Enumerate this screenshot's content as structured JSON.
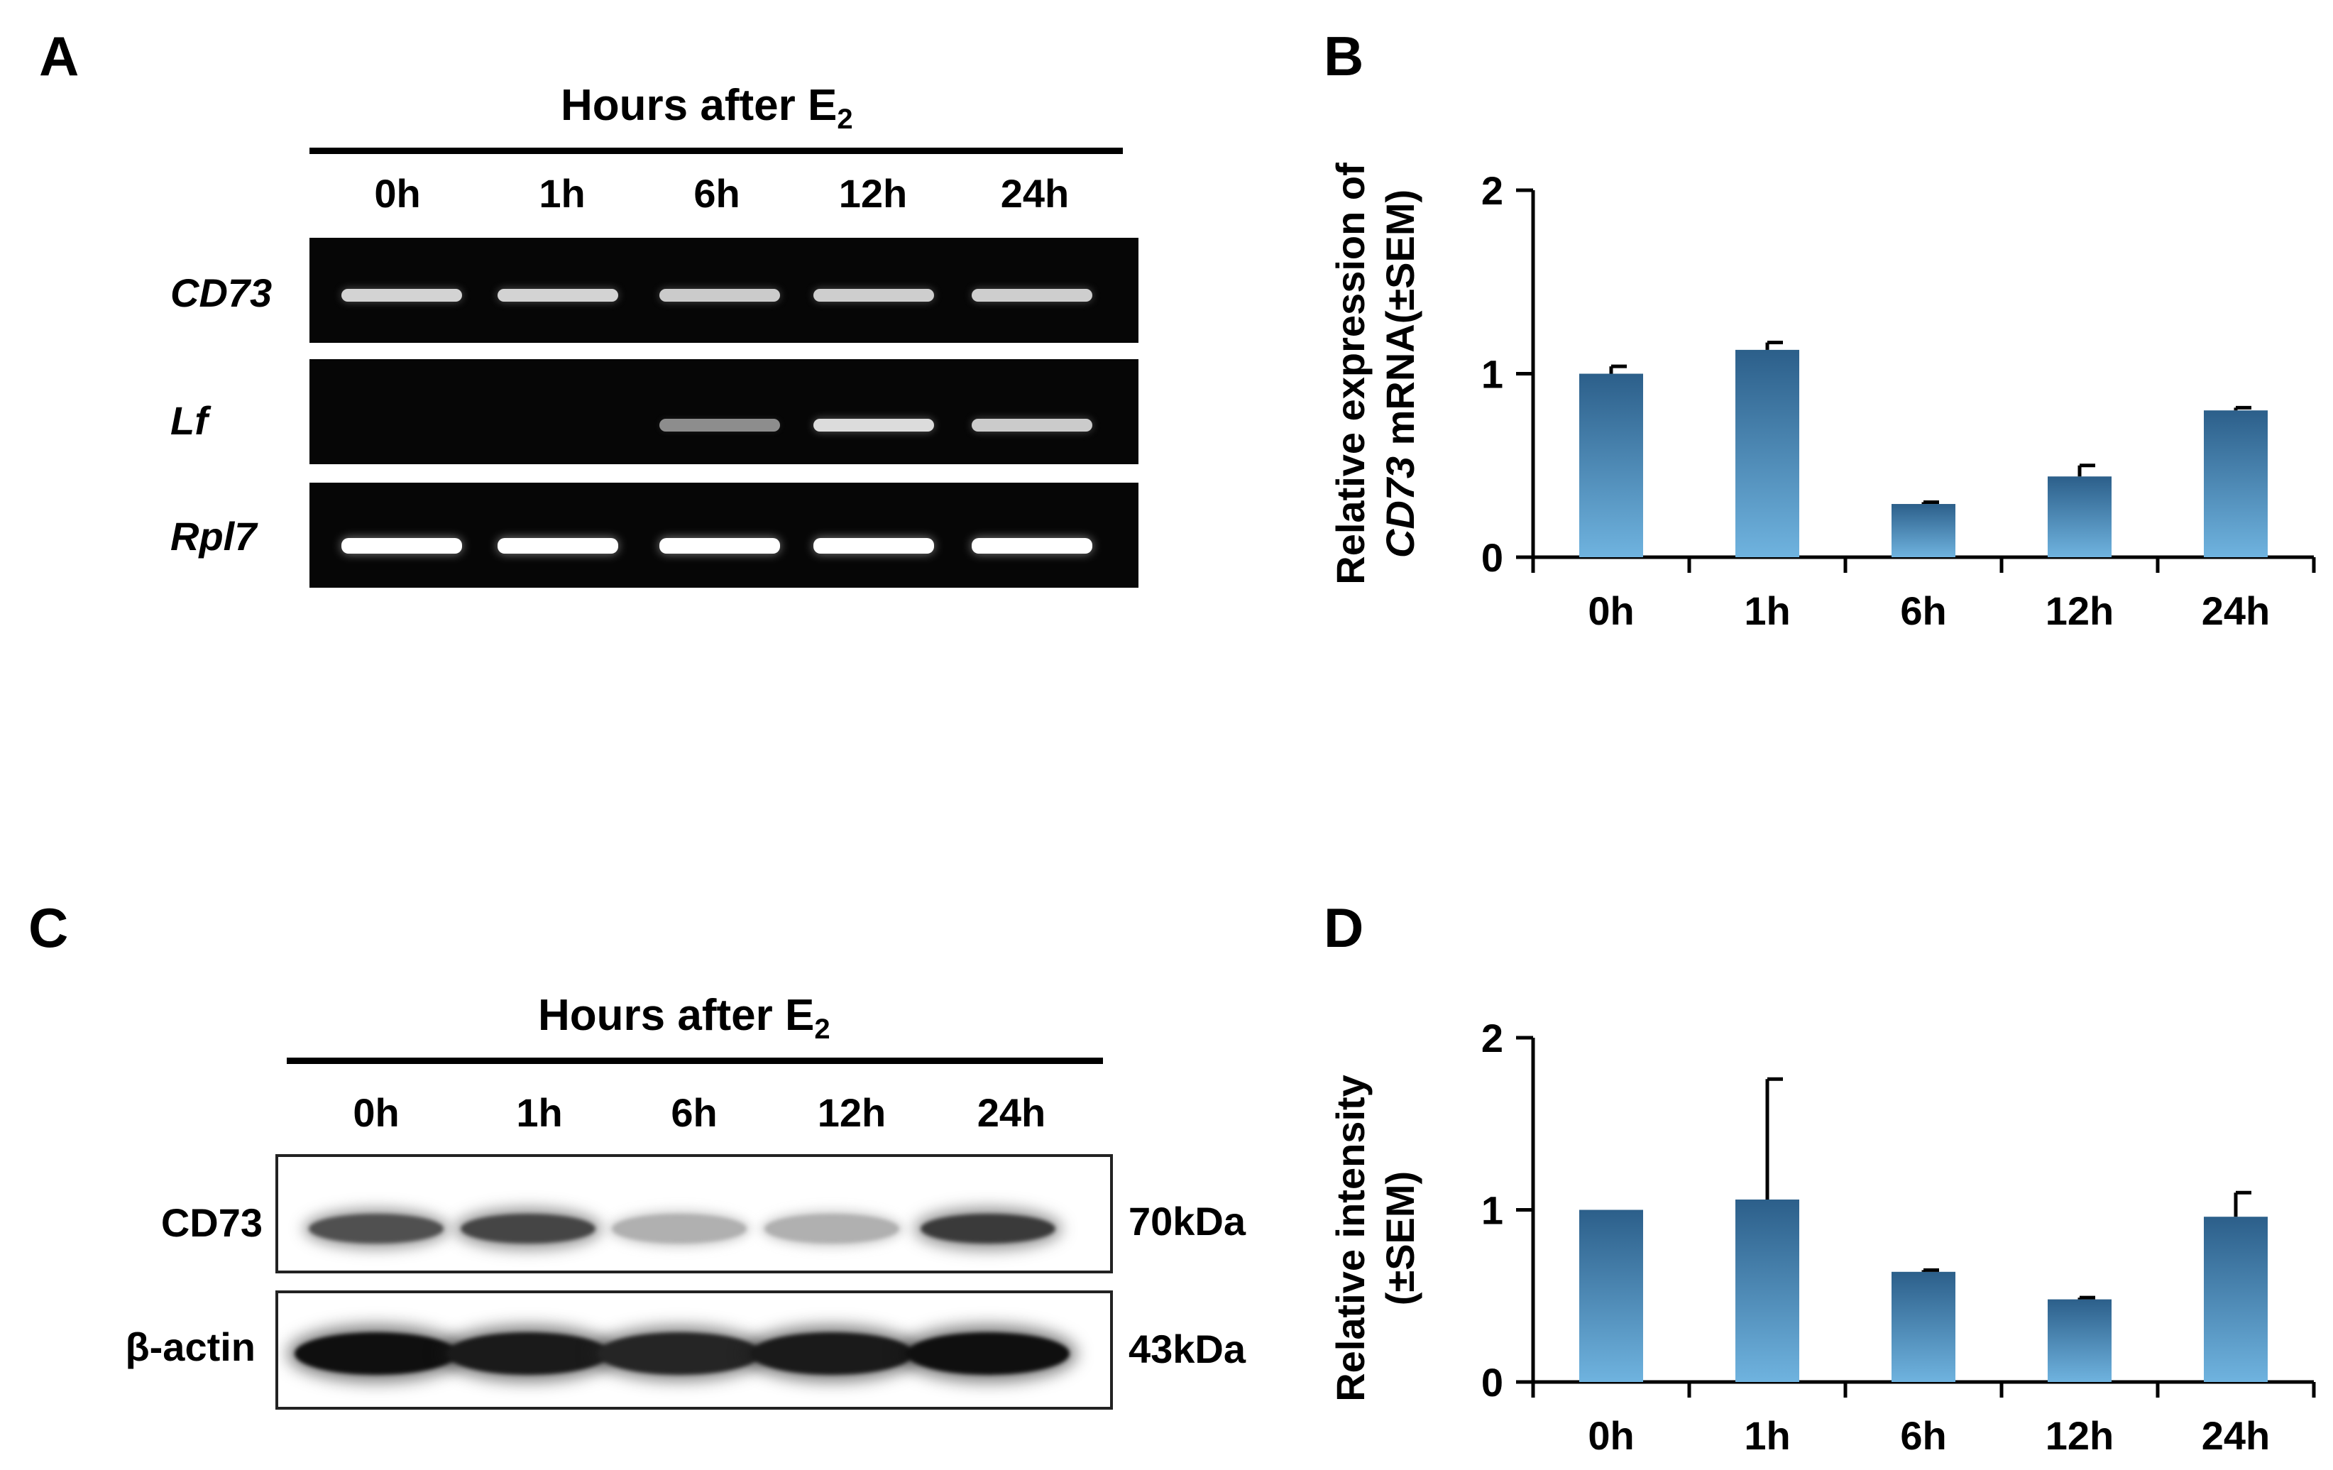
{
  "panels": {
    "A": {
      "letter": "A",
      "header_text": "Hours after E",
      "header_sub": "2",
      "timepoints": [
        "0h",
        "1h",
        "6h",
        "12h",
        "24h"
      ],
      "genes": [
        "CD73",
        "Lf",
        "Rpl7"
      ],
      "gel_band_intensity": {
        "CD73": [
          0.75,
          0.75,
          0.7,
          0.72,
          0.72
        ],
        "Lf": [
          0.02,
          0.02,
          0.35,
          0.8,
          0.7
        ],
        "Rpl7": [
          1.0,
          1.0,
          1.0,
          1.0,
          1.0
        ]
      }
    },
    "B": {
      "letter": "B",
      "ylabel_line1": "Relative expression of",
      "ylabel_line2_italic": "CD73",
      "ylabel_line2_rest": " mRNA(±SEM)"
    },
    "C": {
      "letter": "C",
      "header_text": "Hours after E",
      "header_sub": "2",
      "timepoints": [
        "0h",
        "1h",
        "6h",
        "12h",
        "24h"
      ],
      "proteins": [
        "CD73",
        "β-actin"
      ],
      "sizes": [
        "70kDa",
        "43kDa"
      ],
      "blot_band_intensity": {
        "CD73": [
          0.7,
          0.75,
          0.25,
          0.25,
          0.8
        ],
        "β-actin": [
          1.0,
          0.95,
          0.9,
          0.95,
          1.0
        ]
      }
    },
    "D": {
      "letter": "D",
      "ylabel_line1": "Relative intensity",
      "ylabel_line2": "(±SEM)"
    }
  },
  "chart_data": [
    {
      "type": "bar",
      "panel": "B",
      "categories": [
        "0h",
        "1h",
        "6h",
        "12h",
        "24h"
      ],
      "values": [
        1.0,
        1.13,
        0.29,
        0.44,
        0.8
      ],
      "errors": [
        0.04,
        0.04,
        0.01,
        0.06,
        0.015
      ],
      "ylim": [
        0,
        2
      ],
      "yticks": [
        0,
        1,
        2
      ],
      "ylabel": "Relative expression of CD73 mRNA(±SEM)",
      "bar_color_top": "#2c5f8a",
      "bar_color_bottom": "#6fb3df"
    },
    {
      "type": "bar",
      "panel": "D",
      "categories": [
        "0h",
        "1h",
        "6h",
        "12h",
        "24h"
      ],
      "values": [
        1.0,
        1.06,
        0.64,
        0.48,
        0.96
      ],
      "errors": [
        0.0,
        0.7,
        0.01,
        0.01,
        0.14
      ],
      "ylim": [
        0,
        2
      ],
      "yticks": [
        0,
        1,
        2
      ],
      "ylabel": "Relative intensity (±SEM)",
      "bar_color_top": "#2c5f8a",
      "bar_color_bottom": "#6fb3df"
    }
  ]
}
